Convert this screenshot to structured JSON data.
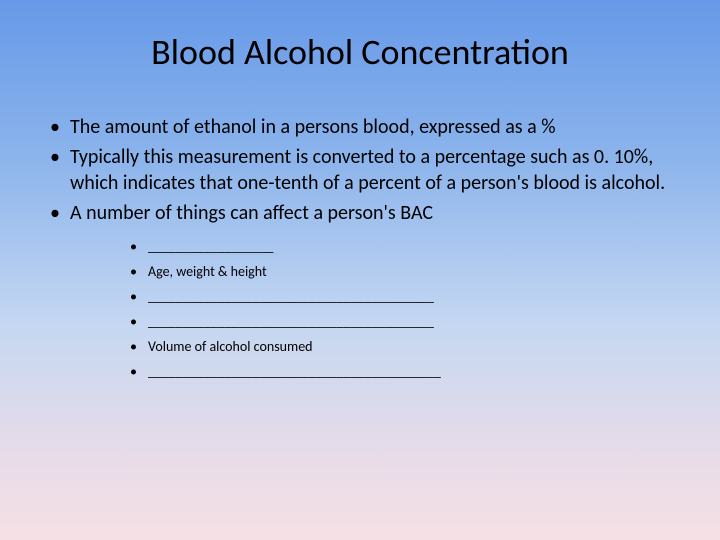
{
  "slide": {
    "title": "Blood Alcohol Concentration",
    "bullets": [
      "The amount of ethanol in a persons blood, expressed as a %",
      "Typically this measurement is converted to a percentage such as 0. 10%, which indicates that one-tenth of a percent of a person's blood is alcohol.",
      "A number of things can affect a person's BAC"
    ],
    "sub_bullets": [
      "__________________",
      "Age, weight & height",
      "_________________________________________",
      "_________________________________________",
      "Volume of alcohol consumed",
      "__________________________________________"
    ]
  },
  "style": {
    "background_gradient_top": "#6699e8",
    "background_gradient_mid1": "#8db5ec",
    "background_gradient_mid2": "#c5d7f2",
    "background_gradient_mid3": "#e8dce8",
    "background_gradient_bottom": "#f5e0e5",
    "text_color": "#000000",
    "title_fontsize": 36,
    "body_fontsize": 20,
    "sub_fontsize": 14,
    "font_family": "Calibri"
  }
}
